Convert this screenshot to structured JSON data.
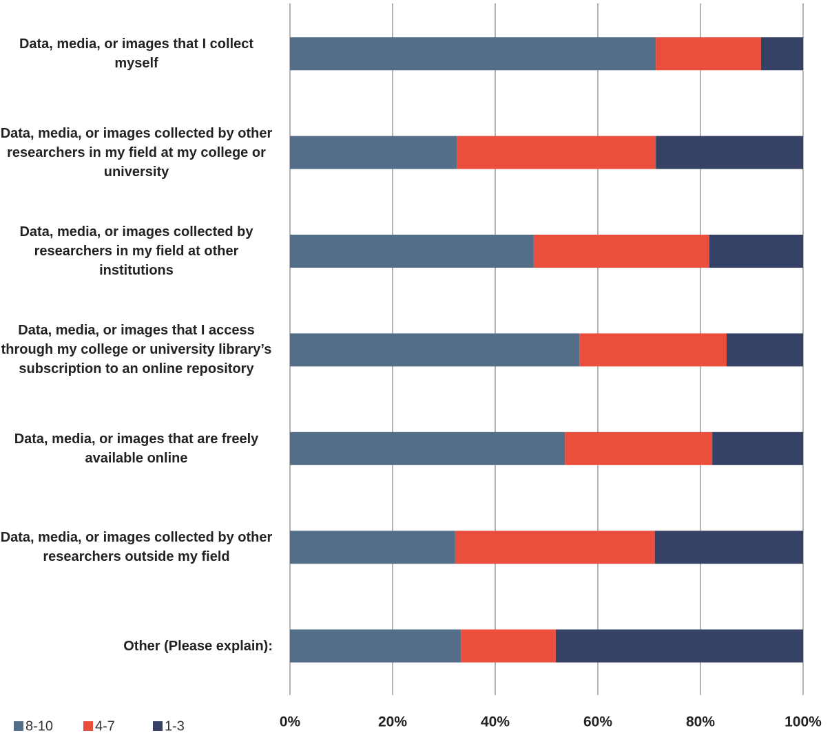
{
  "chart_data": {
    "type": "stacked-bar-horizontal",
    "categories": [
      "Data, media, or images that I collect myself",
      "Data, media, or images collected by other researchers in my field at my college or university",
      "Data, media, or images collected by researchers in my field at other institutions",
      "Data, media, or images that I access through my college or university library’s subscription to an online repository",
      "Data, media, or images that are freely available online",
      "Data, media, or images collected by other researchers outside my field",
      "Other (Please explain):"
    ],
    "series": [
      {
        "name": "8-10",
        "color": "#546e89",
        "values": [
          71.3,
          32.5,
          47.5,
          56.4,
          53.6,
          32.2,
          33.3
        ]
      },
      {
        "name": "4-7",
        "color": "#e94f3c",
        "values": [
          20.5,
          38.8,
          34.2,
          28.7,
          28.7,
          38.9,
          18.5
        ]
      },
      {
        "name": "1-3",
        "color": "#354265",
        "values": [
          8.2,
          28.7,
          18.3,
          14.9,
          17.7,
          28.9,
          48.2
        ]
      }
    ],
    "xlim": [
      0,
      100
    ],
    "xticks": [
      {
        "value": 0,
        "label": "0%"
      },
      {
        "value": 20,
        "label": "20%"
      },
      {
        "value": 40,
        "label": "40%"
      },
      {
        "value": 60,
        "label": "60%"
      },
      {
        "value": 80,
        "label": "80%"
      },
      {
        "value": 100,
        "label": "100%"
      }
    ],
    "grid": true,
    "legend": "bottom-left"
  }
}
